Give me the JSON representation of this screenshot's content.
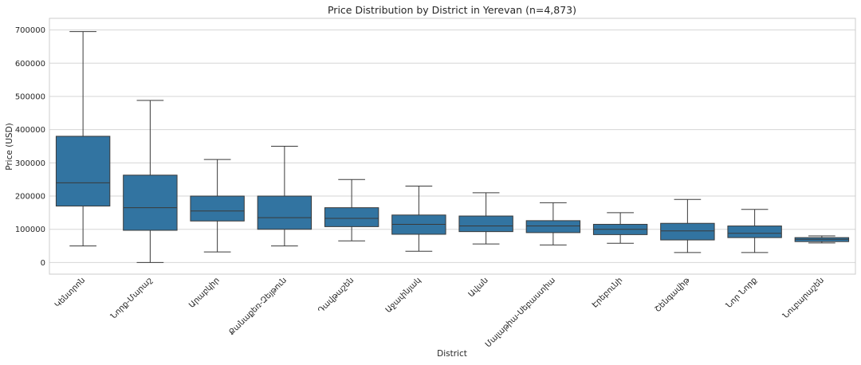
{
  "chart_data": {
    "type": "box",
    "title": "Price Distribution by District in Yerevan (n=4,873)",
    "xlabel": "District",
    "ylabel": "Price (USD)",
    "ylim": [
      -35000,
      735000
    ],
    "yticks": [
      0,
      100000,
      200000,
      300000,
      400000,
      500000,
      600000,
      700000
    ],
    "grid": true,
    "box_color": "#3274a1",
    "categories": [
      "Կենտրոն",
      "Նորք-Մարաշ",
      "Արաբկիր",
      "Քանաքեռ-Զեյթուն",
      "Դավթաշեն",
      "Աջափնյակ",
      "Ավան",
      "Մալաթիա-Սեբաստիա",
      "Էրեբունի",
      "Շենգավիթ",
      "Նոր Նորք",
      "Նուբարաշեն"
    ],
    "boxes": [
      {
        "min": 50000,
        "q1": 170000,
        "median": 240000,
        "q3": 380000,
        "max": 695000
      },
      {
        "min": 0,
        "q1": 97000,
        "median": 165000,
        "q3": 263000,
        "max": 488000
      },
      {
        "min": 32000,
        "q1": 125000,
        "median": 155000,
        "q3": 200000,
        "max": 310000
      },
      {
        "min": 50000,
        "q1": 100000,
        "median": 135000,
        "q3": 200000,
        "max": 350000
      },
      {
        "min": 65000,
        "q1": 108000,
        "median": 133000,
        "q3": 165000,
        "max": 250000
      },
      {
        "min": 34000,
        "q1": 85000,
        "median": 115000,
        "q3": 143000,
        "max": 230000
      },
      {
        "min": 56000,
        "q1": 93000,
        "median": 110000,
        "q3": 140000,
        "max": 210000
      },
      {
        "min": 53000,
        "q1": 90000,
        "median": 110000,
        "q3": 126000,
        "max": 180000
      },
      {
        "min": 58000,
        "q1": 84000,
        "median": 100000,
        "q3": 115000,
        "max": 150000
      },
      {
        "min": 30000,
        "q1": 68000,
        "median": 95000,
        "q3": 118000,
        "max": 190000
      },
      {
        "min": 30000,
        "q1": 75000,
        "median": 88000,
        "q3": 110000,
        "max": 160000
      },
      {
        "min": 59000,
        "q1": 63000,
        "median": 70000,
        "q3": 75000,
        "max": 80000
      }
    ]
  }
}
